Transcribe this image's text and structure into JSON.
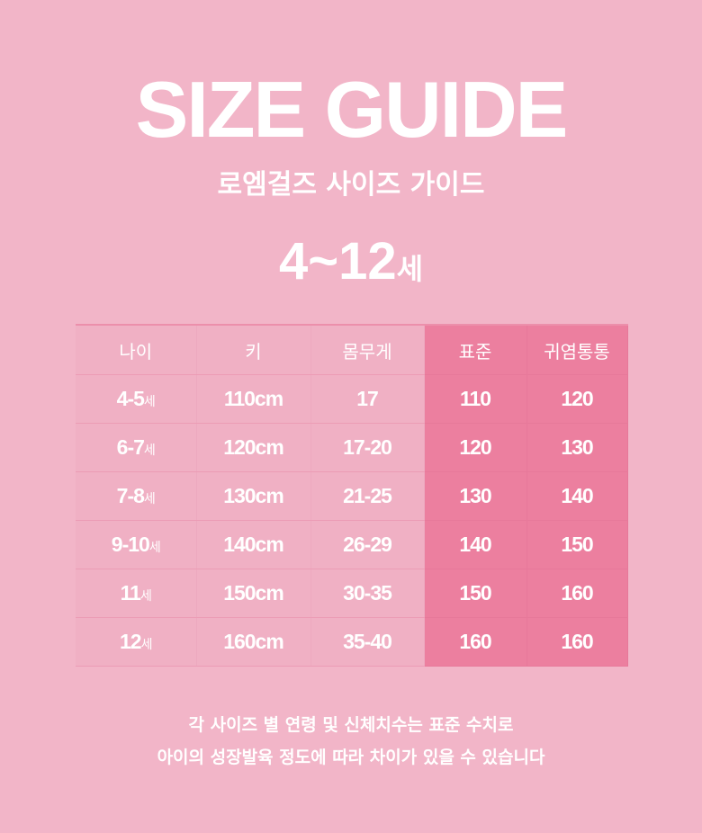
{
  "title": "SIZE GUIDE",
  "subtitle": "로엠걸즈 사이즈 가이드",
  "age_range": {
    "value": "4~12",
    "unit": "세"
  },
  "table": {
    "headers": [
      "나이",
      "키",
      "몸무게",
      "표준",
      "귀염통통"
    ],
    "rows": [
      {
        "age": "4-5",
        "age_unit": "세",
        "height": "110cm",
        "weight": "17",
        "standard": "110",
        "chubby": "120"
      },
      {
        "age": "6-7",
        "age_unit": "세",
        "height": "120cm",
        "weight": "17-20",
        "standard": "120",
        "chubby": "130"
      },
      {
        "age": "7-8",
        "age_unit": "세",
        "height": "130cm",
        "weight": "21-25",
        "standard": "130",
        "chubby": "140"
      },
      {
        "age": "9-10",
        "age_unit": "세",
        "height": "140cm",
        "weight": "26-29",
        "standard": "140",
        "chubby": "150"
      },
      {
        "age": "11",
        "age_unit": "세",
        "height": "150cm",
        "weight": "30-35",
        "standard": "150",
        "chubby": "160"
      },
      {
        "age": "12",
        "age_unit": "세",
        "height": "160cm",
        "weight": "35-40",
        "standard": "160",
        "chubby": "160"
      }
    ]
  },
  "note": [
    "각 사이즈 별 연령 및 신체치수는 표준 수치로",
    "아이의 성장발육 정도에 따라 차이가 있을 수 있습니다"
  ],
  "colors": {
    "background": "#f2b5c8",
    "highlight": "#ec7f9f",
    "text": "#ffffff"
  }
}
